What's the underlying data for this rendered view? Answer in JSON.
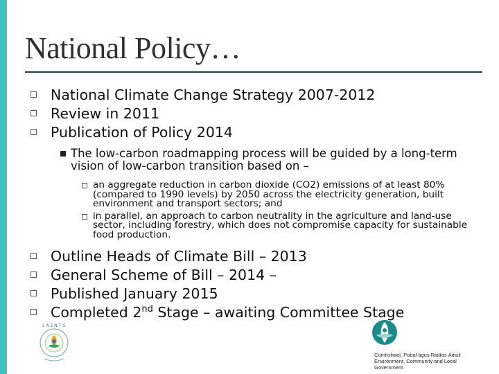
{
  "slide": {
    "title": "National Policy…",
    "bullets_top": [
      "National Climate Change Strategy 2007-2012",
      "Review in 2011",
      "Publication of Policy 2014"
    ],
    "sub_bullet": "The low-carbon roadmapping process will be guided by a long-term vision of low-carbon transition based on –",
    "sub_sub_bullets": [
      "an aggregate reduction in carbon dioxide (CO2) emissions of at least 80% (compared to 1990 levels) by 2050 across the electricity generation, built environment and transport sectors; and",
      "in parallel, an approach to carbon neutrality in the agriculture and land-use sector, including forestry, which does not compromise capacity for sustainable food production."
    ],
    "bullets_bottom": [
      "Outline Heads of Climate Bill – 2013",
      "General Scheme of Bill – 2014 –",
      "Published January 2015"
    ],
    "last_bullet": {
      "pre": "Completed 2",
      "sup": "nd",
      "post": " Stage – awaiting Committee Stage"
    }
  },
  "logos": {
    "left_logo_text": "LASNTG",
    "right_logo_line1": "Comhshaol, Pobal agus Rialtas Áitiúil",
    "right_logo_line2": "Environment, Community and Local Government"
  },
  "colors": {
    "accent_bar": "#3fbfbf",
    "title_rule": "#1f3a4a",
    "logo_teal": "#1a8a8a"
  }
}
